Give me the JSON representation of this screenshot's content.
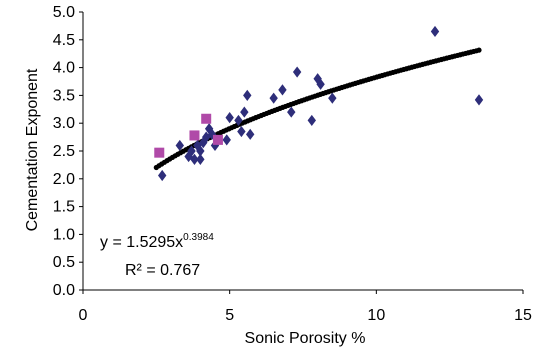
{
  "chart_data": {
    "type": "scatter",
    "xlabel": "Sonic Porosity %",
    "ylabel": "Cementation Exponent",
    "xlim": [
      0,
      15
    ],
    "ylim": [
      0.0,
      5.0
    ],
    "x_ticks": [
      "0",
      "5",
      "10",
      "15"
    ],
    "y_ticks": [
      "0.0",
      "0.5",
      "1.0",
      "1.5",
      "2.0",
      "2.5",
      "3.0",
      "3.5",
      "4.0",
      "4.5",
      "5.0"
    ],
    "grid": false,
    "series": [
      {
        "marker": "diamond",
        "color": "#2e2e7a",
        "points": [
          [
            2.7,
            2.06
          ],
          [
            3.3,
            2.6
          ],
          [
            3.6,
            2.4
          ],
          [
            3.7,
            2.5
          ],
          [
            3.8,
            2.35
          ],
          [
            3.9,
            2.6
          ],
          [
            4.0,
            2.35
          ],
          [
            4.0,
            2.5
          ],
          [
            4.1,
            2.65
          ],
          [
            4.2,
            2.75
          ],
          [
            4.3,
            2.9
          ],
          [
            4.4,
            2.8
          ],
          [
            4.5,
            2.6
          ],
          [
            4.9,
            2.7
          ],
          [
            5.0,
            3.1
          ],
          [
            5.3,
            3.05
          ],
          [
            5.4,
            2.85
          ],
          [
            5.5,
            3.2
          ],
          [
            5.6,
            3.5
          ],
          [
            5.7,
            2.8
          ],
          [
            6.5,
            3.45
          ],
          [
            6.8,
            3.6
          ],
          [
            7.1,
            3.2
          ],
          [
            7.3,
            3.92
          ],
          [
            7.8,
            3.05
          ],
          [
            8.0,
            3.8
          ],
          [
            8.1,
            3.7
          ],
          [
            8.5,
            3.45
          ],
          [
            12.0,
            4.65
          ],
          [
            13.5,
            3.42
          ]
        ]
      },
      {
        "marker": "square",
        "color": "#b04aa8",
        "points": [
          [
            2.6,
            2.47
          ],
          [
            3.8,
            2.78
          ],
          [
            4.2,
            3.08
          ],
          [
            4.6,
            2.7
          ]
        ]
      }
    ],
    "trendline": {
      "a": 1.5295,
      "b": 0.3984,
      "x_range": [
        2.5,
        13.5
      ],
      "color": "#000000"
    },
    "annotation": {
      "equation_prefix": "y = 1.5295x",
      "equation_exponent": "0.3984",
      "r2": "R² = 0.767"
    }
  }
}
